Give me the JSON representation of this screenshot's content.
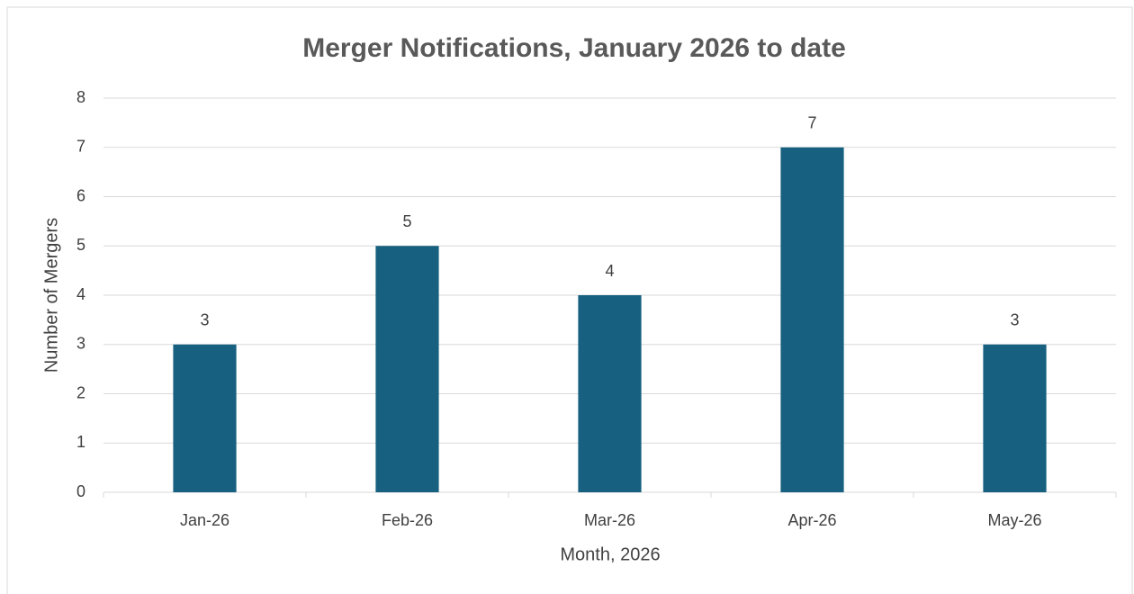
{
  "chart_data": {
    "type": "bar",
    "title": "Merger Notifications, January 2026 to date",
    "x_label": "Month, 2026",
    "y_label": "Number of Mergers",
    "categories": [
      "Jan-26",
      "Feb-26",
      "Mar-26",
      "Apr-26",
      "May-26"
    ],
    "values": [
      3,
      5,
      4,
      7,
      3
    ],
    "color": "#17607f",
    "ylim": [
      0,
      8
    ],
    "yticks": [
      0,
      1,
      2,
      3,
      4,
      5,
      6,
      7,
      8
    ],
    "grid": true,
    "data_labels": true
  }
}
